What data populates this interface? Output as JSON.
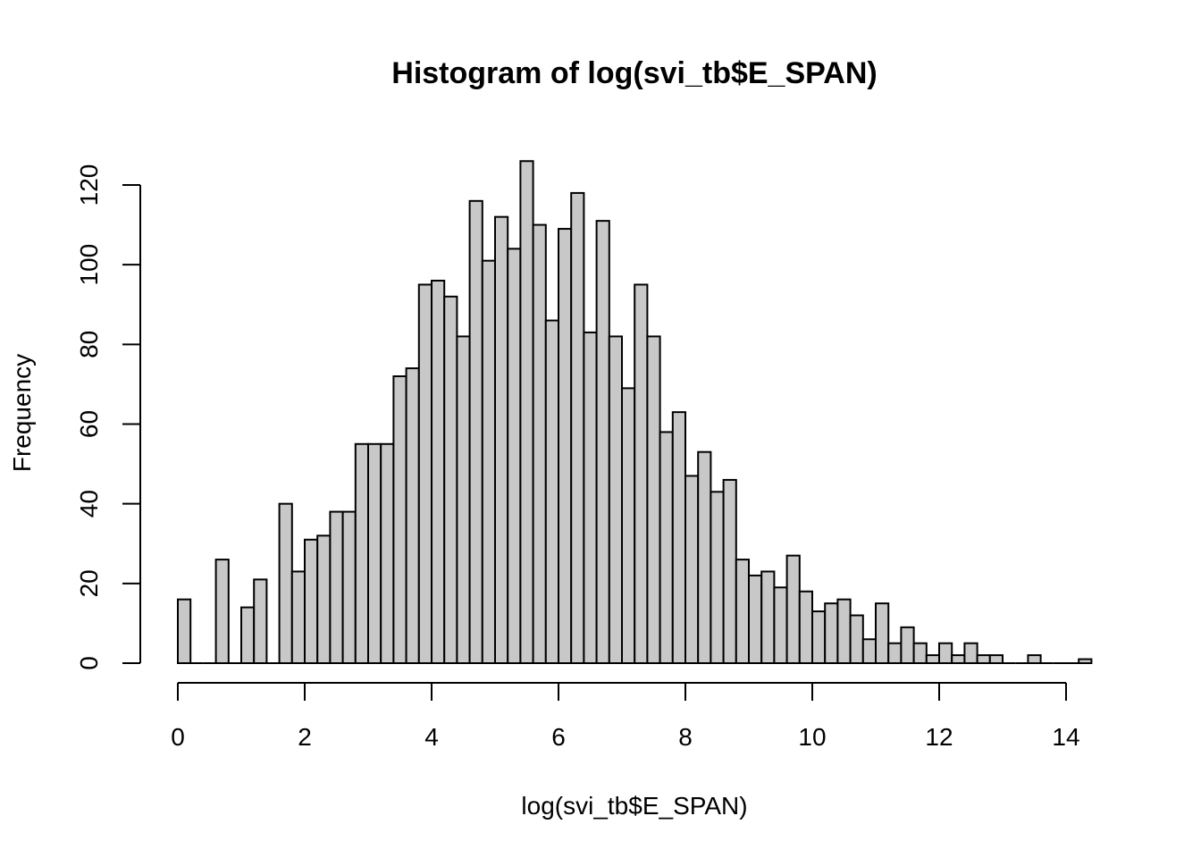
{
  "chart_data": {
    "type": "bar",
    "title": "Histogram of log(svi_tb$E_SPAN)",
    "xlabel": "log(svi_tb$E_SPAN)",
    "ylabel": "Frequency",
    "bin_width": 0.2,
    "bin_start": 0,
    "xlim": [
      0,
      14
    ],
    "ylim": [
      0,
      120
    ],
    "x_ticks": [
      0,
      2,
      4,
      6,
      8,
      10,
      12,
      14
    ],
    "y_ticks": [
      0,
      20,
      40,
      60,
      80,
      100,
      120
    ],
    "values": [
      16,
      0,
      0,
      26,
      0,
      14,
      21,
      0,
      40,
      23,
      31,
      32,
      38,
      38,
      55,
      55,
      55,
      72,
      74,
      95,
      96,
      92,
      82,
      116,
      101,
      112,
      104,
      126,
      110,
      86,
      109,
      118,
      83,
      111,
      82,
      69,
      95,
      82,
      58,
      63,
      47,
      53,
      43,
      46,
      26,
      22,
      23,
      19,
      27,
      18,
      13,
      15,
      16,
      12,
      6,
      15,
      5,
      9,
      5,
      2,
      5,
      2,
      5,
      2,
      2,
      0,
      0,
      2,
      0,
      0,
      0,
      1
    ],
    "grid": false,
    "colors": {
      "bar_fill": "#c8c8c8",
      "bar_stroke": "#000000"
    }
  }
}
